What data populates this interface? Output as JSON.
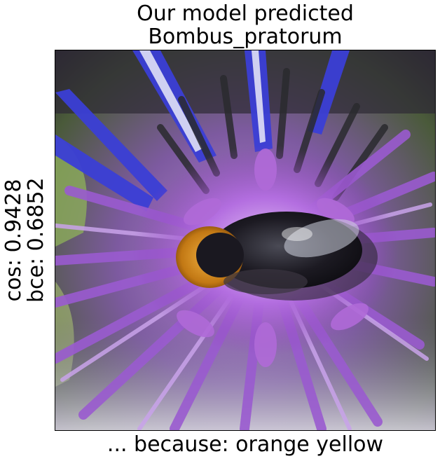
{
  "title": {
    "line1": "Our model predicted",
    "line2": "Bombus_pratorum"
  },
  "scores": {
    "cos": "cos: 0.9428",
    "bce": "bce: 0.6852"
  },
  "caption": "... because: orange yellow",
  "image": {
    "subject": "bumblebee on purple cornflower",
    "colors": {
      "petal": "#9a5bd0",
      "petal_light": "#c9a3ea",
      "petal_blue": "#3b3fd6",
      "leaf": "#7fa64a",
      "background_dark": "#2a2530",
      "bee_body": "#1c1a22",
      "bee_orange": "#d98b1e"
    }
  }
}
